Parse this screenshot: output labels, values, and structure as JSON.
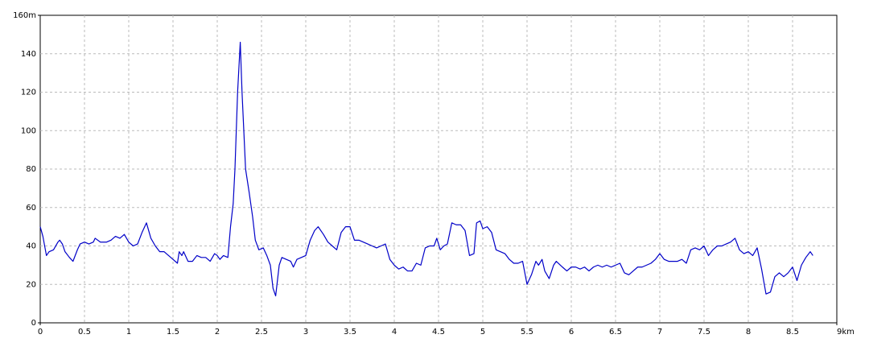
{
  "chart_data": {
    "type": "line",
    "x": [
      0,
      0.03,
      0.07,
      0.1,
      0.15,
      0.2,
      0.22,
      0.25,
      0.28,
      0.33,
      0.37,
      0.42,
      0.45,
      0.5,
      0.55,
      0.6,
      0.62,
      0.68,
      0.75,
      0.8,
      0.85,
      0.9,
      0.95,
      1.0,
      1.05,
      1.1,
      1.15,
      1.2,
      1.25,
      1.3,
      1.35,
      1.4,
      1.45,
      1.5,
      1.55,
      1.57,
      1.6,
      1.62,
      1.67,
      1.72,
      1.77,
      1.82,
      1.87,
      1.92,
      1.97,
      2.0,
      2.03,
      2.07,
      2.12,
      2.15,
      2.18,
      2.2,
      2.23,
      2.26,
      2.28,
      2.32,
      2.36,
      2.4,
      2.43,
      2.47,
      2.52,
      2.56,
      2.6,
      2.63,
      2.66,
      2.7,
      2.73,
      2.78,
      2.83,
      2.86,
      2.9,
      2.95,
      3.0,
      3.05,
      3.1,
      3.14,
      3.2,
      3.25,
      3.3,
      3.35,
      3.4,
      3.45,
      3.5,
      3.55,
      3.6,
      3.65,
      3.7,
      3.75,
      3.8,
      3.85,
      3.9,
      3.95,
      4.0,
      4.05,
      4.1,
      4.15,
      4.2,
      4.25,
      4.3,
      4.35,
      4.4,
      4.45,
      4.48,
      4.52,
      4.56,
      4.6,
      4.65,
      4.7,
      4.75,
      4.8,
      4.85,
      4.9,
      4.93,
      4.97,
      5.0,
      5.05,
      5.1,
      5.15,
      5.2,
      5.25,
      5.3,
      5.35,
      5.4,
      5.45,
      5.5,
      5.55,
      5.6,
      5.63,
      5.67,
      5.7,
      5.75,
      5.8,
      5.83,
      5.9,
      5.95,
      6.0,
      6.05,
      6.1,
      6.15,
      6.2,
      6.25,
      6.3,
      6.35,
      6.4,
      6.45,
      6.5,
      6.55,
      6.6,
      6.65,
      6.7,
      6.75,
      6.8,
      6.85,
      6.9,
      6.95,
      7.0,
      7.05,
      7.1,
      7.15,
      7.2,
      7.25,
      7.3,
      7.35,
      7.4,
      7.45,
      7.5,
      7.55,
      7.6,
      7.65,
      7.7,
      7.75,
      7.8,
      7.85,
      7.9,
      7.95,
      8.0,
      8.05,
      8.1,
      8.15,
      8.2,
      8.25,
      8.3,
      8.35,
      8.4,
      8.45,
      8.5,
      8.55,
      8.6,
      8.65,
      8.7,
      8.73
    ],
    "series": [
      {
        "color": "#0000c8",
        "values": [
          50,
          45,
          35,
          37,
          38,
          42,
          43,
          41,
          37,
          34,
          32,
          38,
          41,
          42,
          41,
          42,
          44,
          42,
          42,
          43,
          45,
          44,
          46,
          42,
          40,
          41,
          47,
          52,
          44,
          40,
          37,
          37,
          35,
          33,
          31,
          37,
          35,
          37,
          32,
          32,
          35,
          34,
          34,
          32,
          36,
          35,
          33,
          35,
          34,
          50,
          62,
          80,
          120,
          146,
          120,
          80,
          68,
          55,
          43,
          38,
          39,
          35,
          30,
          18,
          14,
          30,
          34,
          33,
          32,
          29,
          33,
          34,
          35,
          43,
          48,
          50,
          46,
          42,
          40,
          38,
          47,
          50,
          50,
          43,
          43,
          42,
          41,
          40,
          39,
          40,
          41,
          33,
          30,
          28,
          29,
          27,
          27,
          31,
          30,
          39,
          40,
          40,
          44,
          38,
          40,
          41,
          52,
          51,
          51,
          48,
          35,
          36,
          52,
          53,
          49,
          50,
          47,
          38,
          37,
          36,
          33,
          31,
          31,
          32,
          20,
          25,
          32,
          30,
          33,
          27,
          23,
          30,
          32,
          29,
          27,
          29,
          29,
          28,
          29,
          27,
          29,
          30,
          29,
          30,
          29,
          30,
          31,
          26,
          25,
          27,
          29,
          29,
          30,
          31,
          33,
          36,
          33,
          32,
          32,
          32,
          33,
          31,
          38,
          39,
          38,
          40,
          35,
          38,
          40,
          40,
          41,
          42,
          44,
          38,
          36,
          37,
          35,
          39,
          28,
          15,
          16,
          24,
          26,
          24,
          26,
          29,
          22,
          30,
          34,
          37,
          35
        ]
      }
    ],
    "xlim": [
      0,
      9
    ],
    "ylim": [
      0,
      160
    ],
    "xticks": [
      0,
      0.5,
      1,
      1.5,
      2,
      2.5,
      3,
      3.5,
      4,
      4.5,
      5,
      5.5,
      6,
      6.5,
      7,
      7.5,
      8,
      8.5,
      {
        "value": 9,
        "label": "9km"
      }
    ],
    "yticks": [
      0,
      20,
      40,
      60,
      80,
      100,
      120,
      140,
      {
        "value": 160,
        "label": "160m"
      }
    ],
    "grid": true
  }
}
